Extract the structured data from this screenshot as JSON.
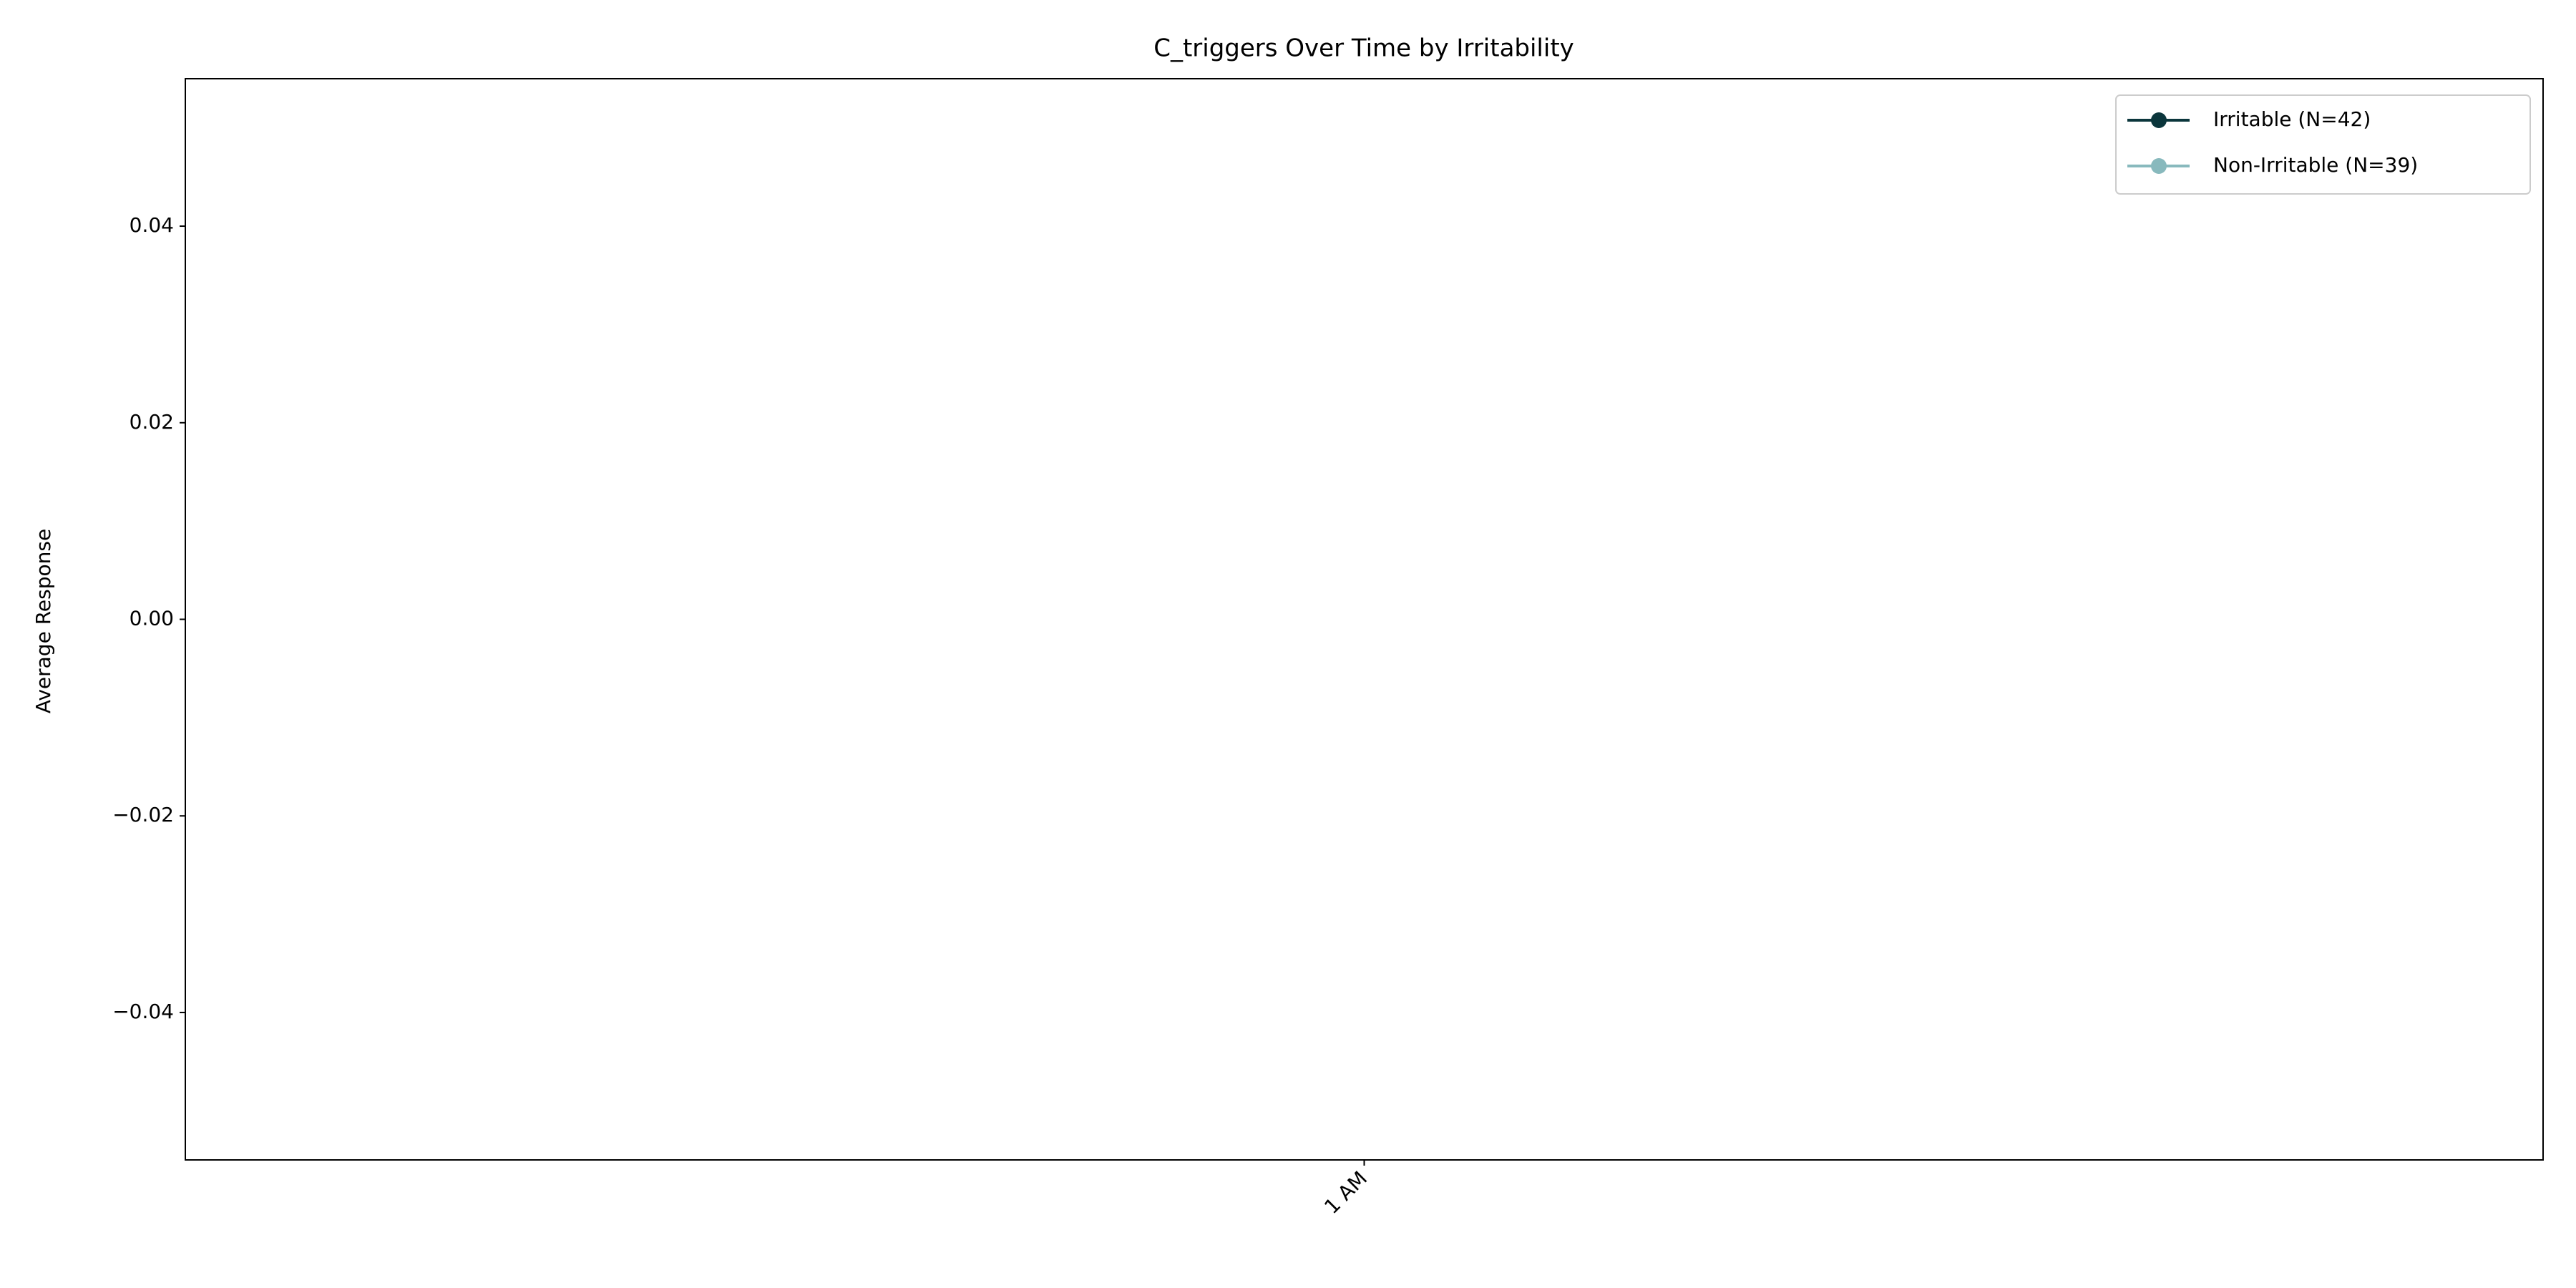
{
  "chart_data": {
    "type": "line",
    "title": "C_triggers Over Time by Irritability",
    "ylabel": "Average Response",
    "categories": [
      "1 AM"
    ],
    "series": [
      {
        "name": "Irritable (N=42)",
        "color": "#0b363c",
        "values": [
          null
        ]
      },
      {
        "name": "Non-Irritable (N=39)",
        "color": "#88b9bd",
        "values": [
          null
        ]
      }
    ],
    "ylim": [
      -0.055,
      0.055
    ],
    "yticks": [
      {
        "value": -0.04,
        "label": "−0.04"
      },
      {
        "value": -0.02,
        "label": "−0.02"
      },
      {
        "value": 0,
        "label": "0.00"
      },
      0.02,
      0.04
    ],
    "grid": false,
    "legend": "upper right"
  }
}
